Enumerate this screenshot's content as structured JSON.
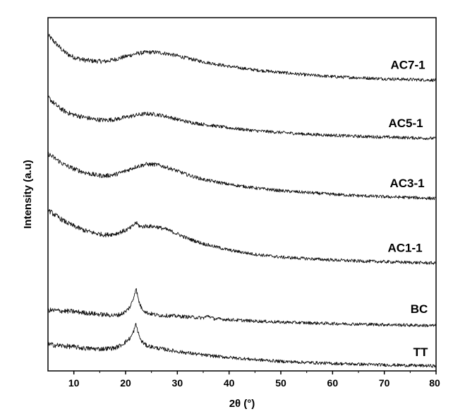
{
  "chart_data": {
    "type": "line",
    "title": "",
    "xlabel": "2θ (°)",
    "ylabel": "Intensity (a.u)",
    "xlim": [
      5,
      80
    ],
    "xticks": [
      10,
      20,
      30,
      40,
      50,
      60,
      70,
      80
    ],
    "y_ticks_shown": false,
    "grid": false,
    "legend": "labels placed at right end of each trace",
    "series": [
      {
        "name": "AC7-1",
        "x": [
          5,
          6,
          7,
          8,
          9,
          10,
          12,
          14,
          16,
          18,
          20,
          22,
          24,
          26,
          28,
          30,
          32,
          35,
          40,
          45,
          50,
          55,
          60,
          65,
          70,
          75,
          80
        ],
        "y": [
          9.5,
          9.35,
          9.2,
          9.05,
          8.95,
          8.88,
          8.8,
          8.77,
          8.76,
          8.82,
          8.9,
          8.98,
          9.02,
          9.02,
          8.98,
          8.92,
          8.85,
          8.75,
          8.62,
          8.52,
          8.45,
          8.38,
          8.33,
          8.3,
          8.27,
          8.25,
          8.23
        ]
      },
      {
        "name": "AC5-1",
        "x": [
          5,
          6,
          7,
          8,
          9,
          10,
          12,
          14,
          16,
          18,
          20,
          22,
          24,
          26,
          28,
          30,
          32,
          35,
          40,
          45,
          50,
          55,
          60,
          65,
          70,
          75,
          80
        ],
        "y": [
          7.75,
          7.6,
          7.47,
          7.37,
          7.3,
          7.25,
          7.18,
          7.12,
          7.1,
          7.12,
          7.18,
          7.24,
          7.28,
          7.26,
          7.2,
          7.12,
          7.05,
          6.98,
          6.88,
          6.8,
          6.75,
          6.7,
          6.67,
          6.64,
          6.62,
          6.6,
          6.58
        ]
      },
      {
        "name": "AC3-1",
        "x": [
          5,
          6,
          7,
          8,
          9,
          10,
          12,
          14,
          16,
          18,
          20,
          22,
          24,
          26,
          28,
          30,
          32,
          35,
          40,
          45,
          50,
          55,
          60,
          65,
          70,
          75,
          80
        ],
        "y": [
          6.15,
          6.05,
          5.95,
          5.85,
          5.78,
          5.72,
          5.62,
          5.55,
          5.52,
          5.56,
          5.66,
          5.78,
          5.85,
          5.84,
          5.76,
          5.66,
          5.55,
          5.42,
          5.28,
          5.18,
          5.1,
          5.05,
          5.0,
          4.96,
          4.93,
          4.91,
          4.88
        ]
      },
      {
        "name": "AC1-1",
        "x": [
          5,
          6,
          7,
          8,
          9,
          10,
          12,
          14,
          16,
          18,
          20,
          21,
          21.5,
          22,
          22.5,
          23,
          24,
          26,
          28,
          30,
          32,
          35,
          40,
          45,
          50,
          55,
          60,
          65,
          70,
          75,
          80
        ],
        "y": [
          4.55,
          4.45,
          4.35,
          4.25,
          4.17,
          4.1,
          3.98,
          3.9,
          3.85,
          3.88,
          3.98,
          4.05,
          4.12,
          4.2,
          4.12,
          4.08,
          4.1,
          4.08,
          4.0,
          3.88,
          3.75,
          3.6,
          3.42,
          3.3,
          3.22,
          3.18,
          3.14,
          3.11,
          3.09,
          3.07,
          3.05
        ]
      },
      {
        "name": "BC",
        "x": [
          5,
          10,
          15,
          18,
          19,
          20,
          20.5,
          21,
          21.5,
          22,
          22.5,
          23,
          24,
          26,
          30,
          35,
          36,
          37,
          40,
          45,
          50,
          60,
          70,
          80
        ],
        "y": [
          1.72,
          1.68,
          1.6,
          1.57,
          1.6,
          1.68,
          1.75,
          1.85,
          2.05,
          2.35,
          2.0,
          1.8,
          1.65,
          1.58,
          1.55,
          1.5,
          1.56,
          1.48,
          1.45,
          1.41,
          1.38,
          1.34,
          1.31,
          1.28
        ]
      },
      {
        "name": "TT",
        "x": [
          5,
          7,
          10,
          12,
          15,
          18,
          19,
          20,
          20.5,
          21,
          21.5,
          22,
          22.5,
          23,
          24,
          26,
          30,
          35,
          40,
          45,
          50,
          55,
          60,
          70,
          80
        ],
        "y": [
          0.75,
          0.72,
          0.68,
          0.64,
          0.62,
          0.65,
          0.72,
          0.82,
          0.88,
          0.95,
          1.1,
          1.32,
          1.05,
          0.85,
          0.72,
          0.65,
          0.55,
          0.45,
          0.38,
          0.32,
          0.27,
          0.24,
          0.21,
          0.17,
          0.14
        ]
      }
    ]
  }
}
